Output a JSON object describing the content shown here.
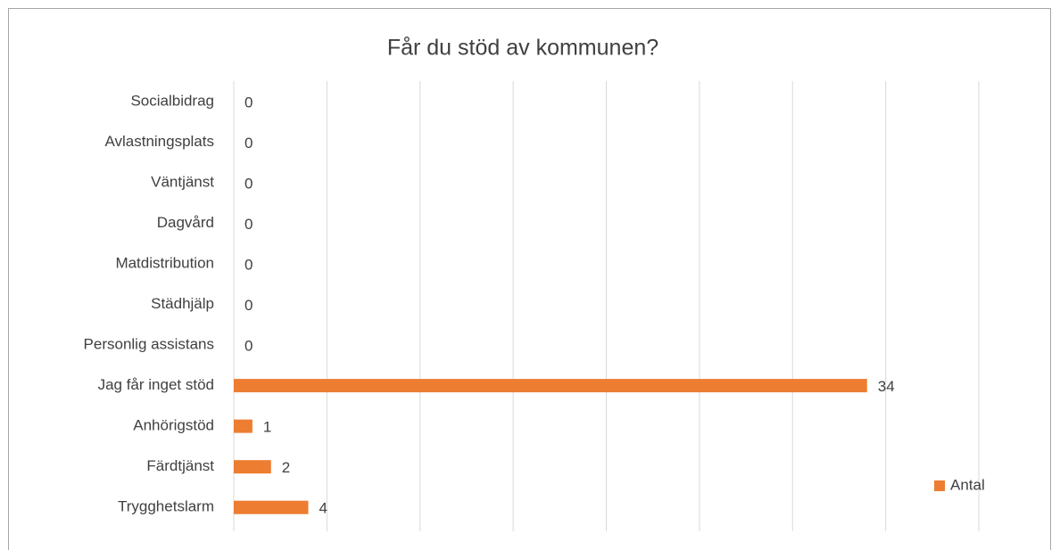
{
  "chart_data": {
    "type": "bar",
    "orientation": "horizontal",
    "title": "Får du stöd av kommunen?",
    "categories": [
      "Socialbidrag",
      "Avlastningsplats",
      "Väntjänst",
      "Dagvård",
      "Matdistribution",
      "Städhjälp",
      "Personlig assistans",
      "Jag får inget stöd",
      "Anhörigstöd",
      "Färdtjänst",
      "Trygghetslarm"
    ],
    "series": [
      {
        "name": "Antal",
        "color": "#ed7d31",
        "values": [
          0,
          0,
          0,
          0,
          0,
          0,
          0,
          34,
          1,
          2,
          4
        ]
      }
    ],
    "xlim": [
      0,
      40
    ],
    "xticks": [
      0,
      5,
      10,
      15,
      20,
      25,
      30,
      35,
      40
    ],
    "grid": true,
    "legend": "right"
  }
}
